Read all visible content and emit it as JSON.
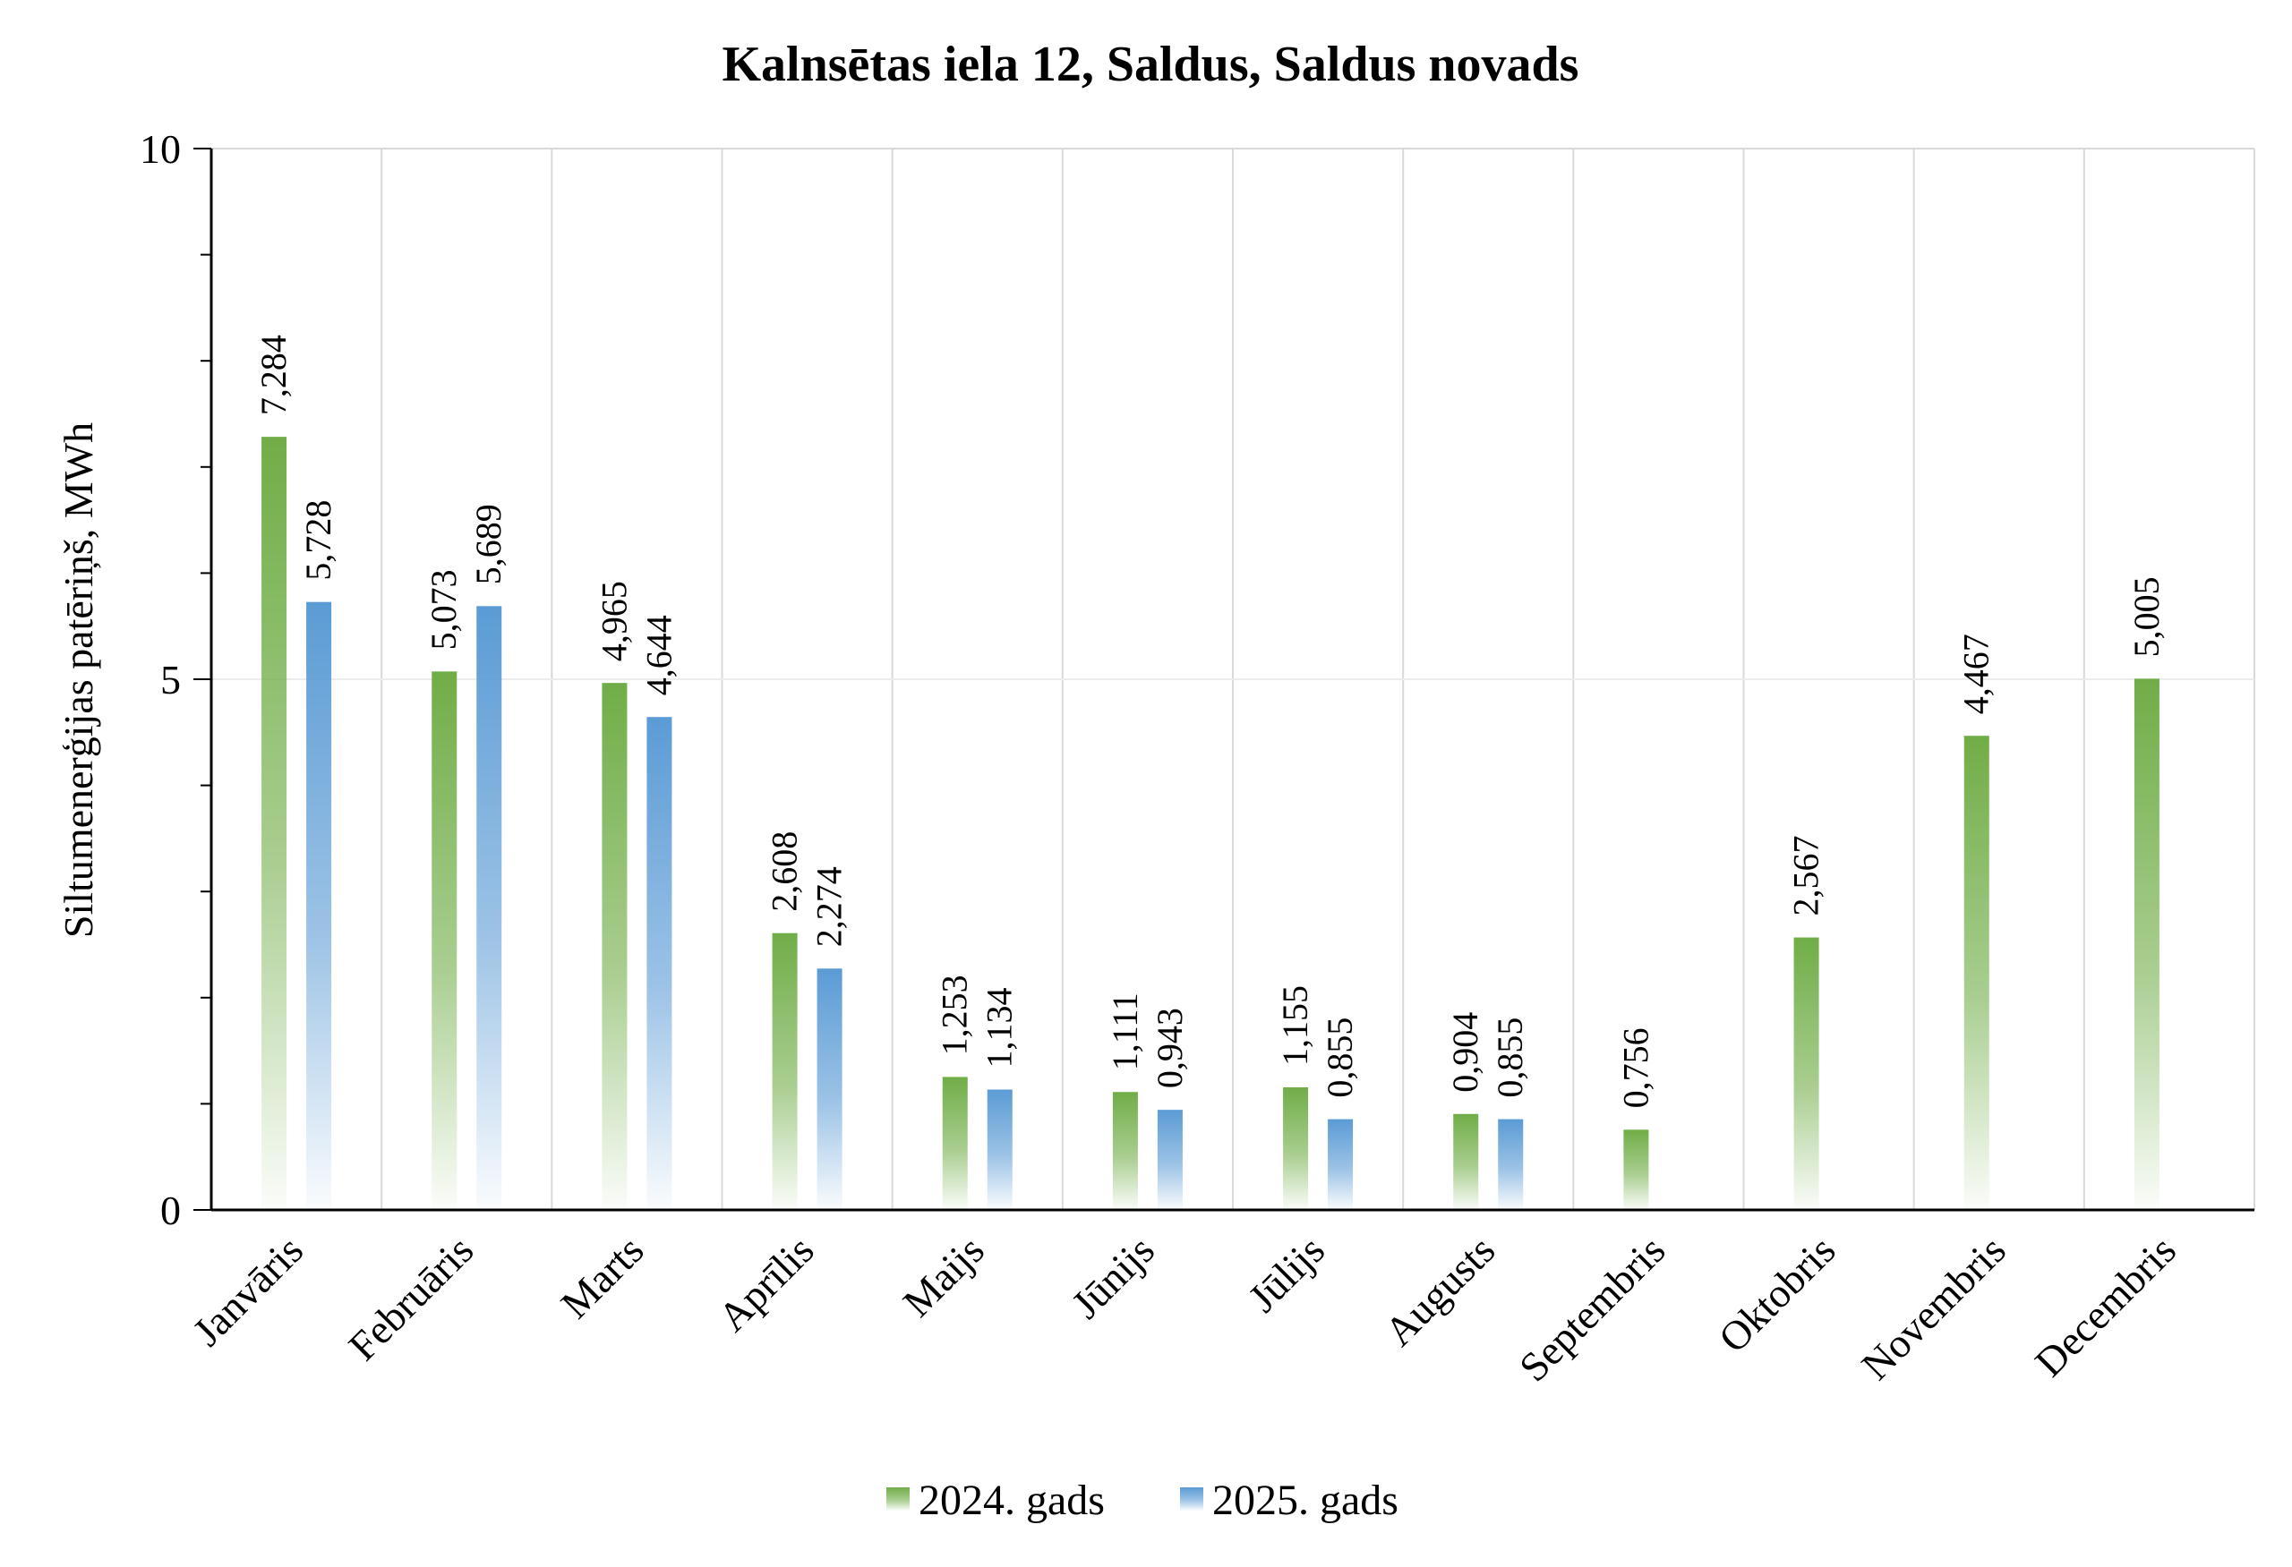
{
  "chart_data": {
    "type": "bar",
    "title": "Kalnsētas iela 12, Saldus, Saldus novads",
    "xlabel": "",
    "ylabel": "Siltumenerģijas patēriņš, MWh",
    "ylim": [
      0,
      10
    ],
    "yticks": [
      "0",
      "5",
      "10"
    ],
    "grid": true,
    "legend_position": "bottom",
    "categories": [
      "Janvāris",
      "Februāris",
      "Marts",
      "Aprīlis",
      "Maijs",
      "Jūnijs",
      "Jūlijs",
      "Augusts",
      "Septembris",
      "Oktobris",
      "Novembris",
      "Decembris"
    ],
    "series": [
      {
        "name": "2024. gads",
        "color": "#70ad47",
        "values": [
          7.284,
          5.073,
          4.965,
          2.608,
          1.253,
          1.111,
          1.155,
          0.904,
          0.756,
          2.567,
          4.467,
          5.005
        ],
        "labels": [
          "7,284",
          "5,073",
          "4,965",
          "2,608",
          "1,253",
          "1,111",
          "1,155",
          "0,904",
          "0,756",
          "2,567",
          "4,467",
          "5,005"
        ]
      },
      {
        "name": "2025. gads",
        "color": "#5b9bd5",
        "values": [
          5.728,
          5.689,
          4.644,
          2.274,
          1.134,
          0.943,
          0.855,
          0.855,
          null,
          null,
          null,
          null
        ],
        "labels": [
          "5,728",
          "5,689",
          "4,644",
          "2,274",
          "1,134",
          "0,943",
          "0,855",
          "0,855",
          null,
          null,
          null,
          null
        ]
      }
    ]
  }
}
